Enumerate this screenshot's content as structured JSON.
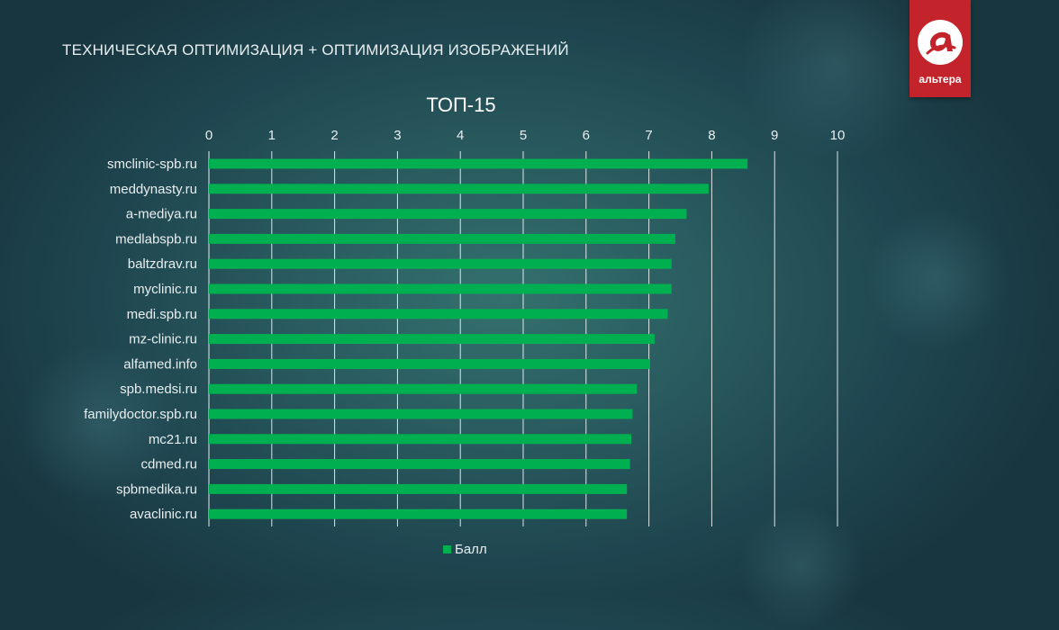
{
  "slide": {
    "title": "ТЕХНИЧЕСКАЯ ОПТИМИЗАЦИЯ + ОПТИМИЗАЦИЯ ИЗОБРАЖЕНИЙ"
  },
  "logo": {
    "text": "альтера",
    "color": "#c3242b"
  },
  "chart_data": {
    "type": "bar",
    "orientation": "horizontal",
    "title": "ТОП-15",
    "categories": [
      "smclinic-spb.ru",
      "meddynasty.ru",
      "a-mediya.ru",
      "medlabspb.ru",
      "baltzdrav.ru",
      "myclinic.ru",
      "medi.spb.ru",
      "mz-clinic.ru",
      "alfamed.info",
      "spb.medsi.ru",
      "familydoctor.spb.ru",
      "mc21.ru",
      "cdmed.ru",
      "spbmedika.ru",
      "avaclinic.ru"
    ],
    "series": [
      {
        "name": "Балл",
        "color": "#00b050",
        "values": [
          8.57,
          7.95,
          7.6,
          7.42,
          7.36,
          7.36,
          7.3,
          7.09,
          7.02,
          6.81,
          6.74,
          6.72,
          6.7,
          6.65,
          6.65
        ]
      }
    ],
    "xlim": [
      0,
      10
    ],
    "x_ticks": [
      "0",
      "1",
      "2",
      "3",
      "4",
      "5",
      "6",
      "7",
      "8",
      "9",
      "10"
    ],
    "grid": true,
    "axis_position": "top",
    "legend": "bottom"
  }
}
